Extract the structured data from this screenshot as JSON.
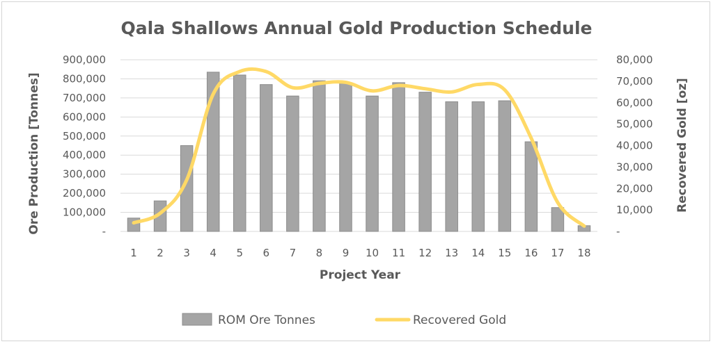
{
  "chart_data": {
    "type": "bar+line",
    "title": "Qala Shallows Annual Gold Production Schedule",
    "xlabel": "Project Year",
    "ylabel_left": "Ore Production [Tonnes]",
    "ylabel_right": "Recovered Gold [oz]",
    "categories": [
      "1",
      "2",
      "3",
      "4",
      "5",
      "6",
      "7",
      "8",
      "9",
      "10",
      "11",
      "12",
      "13",
      "14",
      "15",
      "16",
      "17",
      "18"
    ],
    "y_left": {
      "min": 0,
      "max": 900000,
      "step": 100000,
      "tick_labels": [
        "-",
        "100,000",
        "200,000",
        "300,000",
        "400,000",
        "500,000",
        "600,000",
        "700,000",
        "800,000",
        "900,000"
      ]
    },
    "y_right": {
      "min": 0,
      "max": 80000,
      "step": 10000,
      "tick_labels": [
        "-",
        "10,000",
        "20,000",
        "30,000",
        "40,000",
        "50,000",
        "60,000",
        "70,000",
        "80,000"
      ]
    },
    "series": [
      {
        "name": "ROM Ore Tonnes",
        "type": "bar",
        "axis": "left",
        "color": "#a5a5a5",
        "values": [
          70000,
          160000,
          450000,
          835000,
          820000,
          770000,
          710000,
          790000,
          780000,
          710000,
          780000,
          730000,
          680000,
          680000,
          685000,
          470000,
          125000,
          30000
        ]
      },
      {
        "name": "Recovered Gold",
        "type": "line",
        "axis": "right",
        "color": "#ffd966",
        "values": [
          4000,
          8500,
          24000,
          64000,
          74500,
          74500,
          67000,
          69000,
          69500,
          65500,
          68000,
          66500,
          65000,
          68500,
          66000,
          43500,
          13500,
          2500
        ]
      }
    ],
    "grid": true,
    "legend_position": "bottom"
  },
  "colors": {
    "bar_fill": "#a5a5a5",
    "bar_stroke": "#8c8c8c",
    "line": "#ffd966",
    "grid": "#d9d9d9",
    "text": "#595959"
  }
}
